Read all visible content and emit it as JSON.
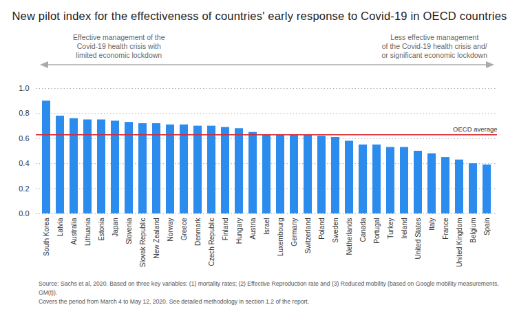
{
  "chart_data": {
    "type": "bar",
    "title": "New pilot index for the effectiveness of countries' early response to Covid-19 in OECD countries",
    "annotations": [
      {
        "side": "left",
        "lines": [
          "Effective management of the",
          "Covid-19 health crisis with",
          "limited economic lockdown"
        ]
      },
      {
        "side": "right",
        "lines": [
          "Less effective management",
          "of the Covid-19 health crisis and/",
          "or significant economic lockdown"
        ]
      }
    ],
    "categories": [
      "South Korea",
      "Latvia",
      "Australia",
      "Lithuania",
      "Estonia",
      "Japan",
      "Slovenia",
      "Slovak Republic",
      "New Zealand",
      "Norway",
      "Greece",
      "Denmark",
      "Czech Republic",
      "Finland",
      "Hungary",
      "Austria",
      "Israel",
      "Luxembourg",
      "Germany",
      "Switzerland",
      "Poland",
      "Sweden",
      "Netherlands",
      "Canada",
      "Portugal",
      "Turkey",
      "Ireland",
      "United States",
      "Italy",
      "France",
      "United Kingdom",
      "Belgium",
      "Spain"
    ],
    "values": [
      0.9,
      0.78,
      0.76,
      0.75,
      0.75,
      0.74,
      0.73,
      0.72,
      0.72,
      0.71,
      0.71,
      0.7,
      0.7,
      0.69,
      0.68,
      0.65,
      0.63,
      0.63,
      0.63,
      0.63,
      0.62,
      0.61,
      0.58,
      0.55,
      0.55,
      0.53,
      0.53,
      0.5,
      0.48,
      0.45,
      0.43,
      0.4,
      0.39
    ],
    "color": "#2b8cee",
    "reference_line": {
      "value": 0.63,
      "label": "OECD average",
      "color": "#e0202a"
    },
    "ylim": [
      0,
      1
    ],
    "yticks": [
      0,
      0.2,
      0.4,
      0.6,
      0.8,
      1
    ],
    "grid": true,
    "caption": [
      "Source: Sachs et al, 2020. Based on three key variables: (1) mortality rates; (2) Effective Reproduction rate and (3) Reduced mobility (based on Google mobility measurements, GM(t)).",
      "Covers the period from March 4 to May 12, 2020. See detailed methodology in section 1.2 of the report."
    ]
  }
}
